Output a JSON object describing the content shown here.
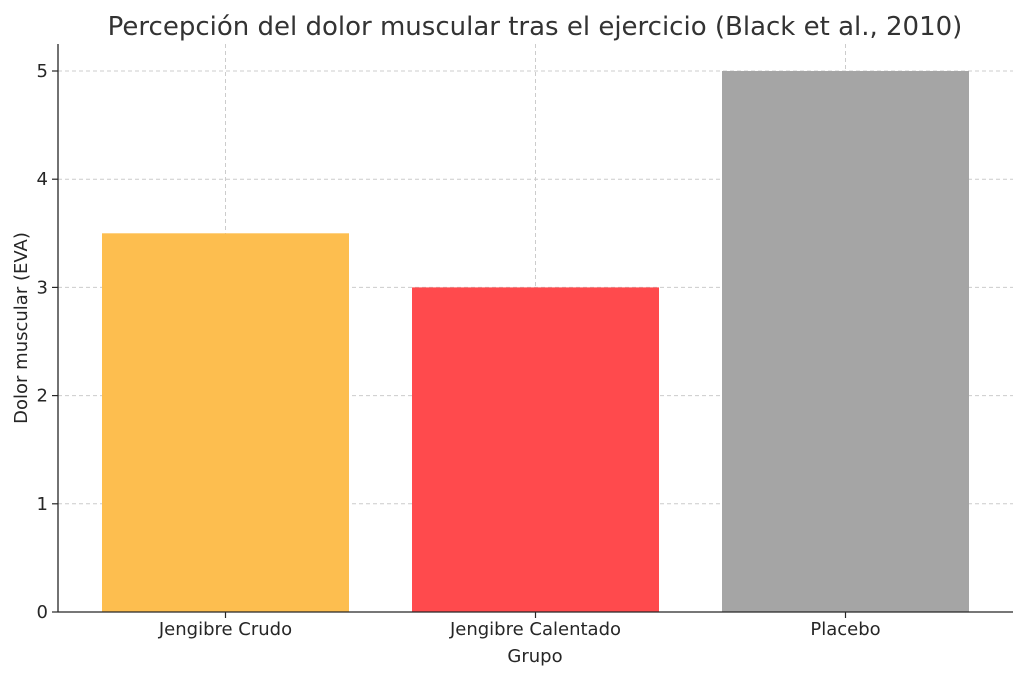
{
  "chart_data": {
    "type": "bar",
    "title": "Percepción del dolor muscular tras el ejercicio (Black et al., 2010)",
    "xlabel": "Grupo",
    "ylabel": "Dolor muscular (EVA)",
    "categories": [
      "Jengibre Crudo",
      "Jengibre Calentado",
      "Placebo"
    ],
    "values": [
      3.5,
      3.0,
      5.0
    ],
    "colors": [
      "#fdbe4f",
      "#ff4a4d",
      "#a5a5a5"
    ],
    "ylim": [
      0,
      5.25
    ],
    "yticks": [
      0,
      1,
      2,
      3,
      4,
      5
    ],
    "grid": true,
    "legend": "none"
  }
}
